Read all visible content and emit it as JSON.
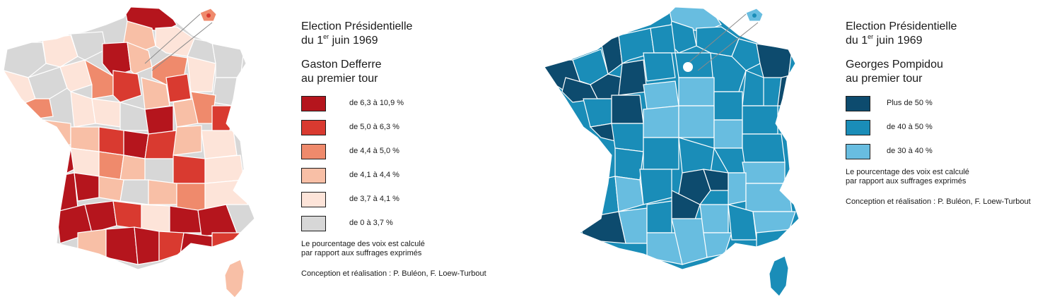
{
  "panels": [
    {
      "id": "defferre",
      "title_line1": "Election Présidentielle",
      "title_pre": "du 1",
      "title_sup": "er",
      "title_post": " juin 1969",
      "subtitle_line1": "Gaston Defferre",
      "subtitle_line2": "au premier tour",
      "classes": [
        {
          "label": "de 6,3 à 10,9 %",
          "color": "#b5151d"
        },
        {
          "label": "de 5,0 à 6,3 %",
          "color": "#d93a30"
        },
        {
          "label": "de 4,4 à 5,0 %",
          "color": "#ef8a6c"
        },
        {
          "label": "de 4,1 à 4,4 %",
          "color": "#f8bfa6"
        },
        {
          "label": "de 3,7 à 4,1 %",
          "color": "#fde4d9"
        },
        {
          "label": "de 0 à 3,7 %",
          "color": "#d7d7d7"
        }
      ],
      "note_line1": "Le pourcentage des voix est calculé",
      "note_line2": "par rapport aux suffrages exprimés",
      "credit": "Conception et réalisation : P. Buléon, F. Loew-Turbout"
    },
    {
      "id": "pompidou",
      "title_line1": "Election Présidentielle",
      "title_pre": "du 1",
      "title_sup": "er",
      "title_post": " juin 1969",
      "subtitle_line1": "Georges Pompidou",
      "subtitle_line2": "au premier tour",
      "classes": [
        {
          "label": "Plus de 50 %",
          "color": "#0d4b6e"
        },
        {
          "label": "de 40 à 50 %",
          "color": "#1a8db8"
        },
        {
          "label": "de 30 à 40 %",
          "color": "#68bde0"
        }
      ],
      "note_line1": "Le pourcentage des voix est calculé",
      "note_line2": "par rapport aux suffrages exprimés",
      "credit": "Conception et réalisation : P. Buléon, F. Loew-Turbout"
    }
  ]
}
